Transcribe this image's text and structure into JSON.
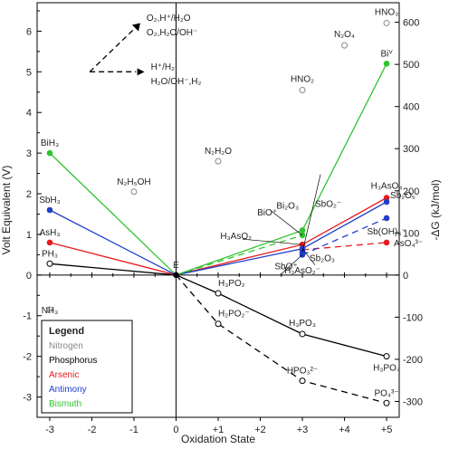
{
  "chart_data": {
    "type": "line",
    "xlabel": "Oxidation State",
    "ylabel": "Volt Equivalent (V)",
    "ylabel_right": "-ΔG (kJ/mol)",
    "xlim": [
      -3.3,
      5.3
    ],
    "ylim": [
      -3.5,
      6.7
    ],
    "x_ticks": [
      {
        "value": -3,
        "label": "-3"
      },
      {
        "value": -2,
        "label": "-2"
      },
      {
        "value": -1,
        "label": "-1"
      },
      {
        "value": 0,
        "label": "0"
      },
      {
        "value": 1,
        "label": "+1"
      },
      {
        "value": 2,
        "label": "+2"
      },
      {
        "value": 3,
        "label": "+3"
      },
      {
        "value": 4,
        "label": "+4"
      },
      {
        "value": 5,
        "label": "+5"
      }
    ],
    "y_ticks": [
      {
        "value": -3,
        "label": "-3"
      },
      {
        "value": -2,
        "label": "-2"
      },
      {
        "value": -1,
        "label": "-1"
      },
      {
        "value": 0,
        "label": "0"
      },
      {
        "value": 1,
        "label": "1"
      },
      {
        "value": 2,
        "label": "2"
      },
      {
        "value": 3,
        "label": "3"
      },
      {
        "value": 4,
        "label": "4"
      },
      {
        "value": 5,
        "label": "5"
      },
      {
        "value": 6,
        "label": "6"
      }
    ],
    "y2_ticks": [
      {
        "value": -300,
        "label": "-300"
      },
      {
        "value": -200,
        "label": "-200"
      },
      {
        "value": -100,
        "label": "-100"
      },
      {
        "value": 0,
        "label": "0"
      },
      {
        "value": 100,
        "label": "100"
      },
      {
        "value": 200,
        "label": "200"
      },
      {
        "value": 300,
        "label": "300"
      },
      {
        "value": 400,
        "label": "400"
      },
      {
        "value": 500,
        "label": "500"
      },
      {
        "value": 600,
        "label": "600"
      }
    ],
    "colors": {
      "Nitrogen": "#888888",
      "Phosphorus": "#000000",
      "Arsenic": "#e8191b",
      "Antimony": "#1f3fc9",
      "Bismuth": "#2ec52e"
    },
    "legend": {
      "title": "Legend",
      "entries": [
        "Nitrogen",
        "Phosphorus",
        "Arsenic",
        "Antimony",
        "Bismuth"
      ]
    },
    "annotation": {
      "line1": [
        "O₂,H⁺/H₂O",
        "O₂,H₂O/OH⁻"
      ],
      "line2": [
        "H⁺/H₂",
        "H₂O/OH⁻,H₂"
      ]
    },
    "lines": [
      {
        "color": "Phosphorus",
        "style": "solid",
        "points": [
          [
            -3,
            0.28
          ],
          [
            0,
            0.0
          ]
        ]
      },
      {
        "color": "Phosphorus",
        "style": "solid",
        "points": [
          [
            0,
            0.0
          ],
          [
            1,
            -0.45
          ],
          [
            3,
            -1.45
          ],
          [
            5,
            -2.0
          ]
        ]
      },
      {
        "color": "Phosphorus",
        "style": "dashed",
        "points": [
          [
            0,
            0.0
          ],
          [
            1,
            -1.2
          ],
          [
            3,
            -2.6
          ],
          [
            5,
            -3.15
          ]
        ]
      },
      {
        "color": "Arsenic",
        "style": "solid",
        "points": [
          [
            -3,
            0.8
          ],
          [
            0,
            0.0
          ],
          [
            3,
            0.75
          ],
          [
            5,
            1.9
          ]
        ]
      },
      {
        "color": "Arsenic",
        "style": "dashed",
        "points": [
          [
            3,
            0.62
          ],
          [
            5,
            0.8
          ]
        ]
      },
      {
        "color": "Antimony",
        "style": "solid",
        "points": [
          [
            -3,
            1.6
          ],
          [
            0,
            0.0
          ],
          [
            3,
            0.65
          ],
          [
            5,
            1.8
          ]
        ]
      },
      {
        "color": "Antimony",
        "style": "dashed",
        "points": [
          [
            3,
            0.5
          ],
          [
            5,
            1.4
          ]
        ]
      },
      {
        "color": "Bismuth",
        "style": "solid",
        "points": [
          [
            -3,
            3.0
          ],
          [
            0,
            0.0
          ],
          [
            3,
            1.1
          ],
          [
            5,
            5.2
          ]
        ]
      },
      {
        "color": "Bismuth",
        "style": "dashed",
        "points": [
          [
            0,
            0.0
          ],
          [
            3,
            0.98
          ]
        ]
      }
    ],
    "points": [
      {
        "color": "Nitrogen",
        "x": -3,
        "y": -0.85,
        "open": true,
        "label": "NH₃"
      },
      {
        "color": "Nitrogen",
        "x": -1,
        "y": 2.05,
        "open": true,
        "label": "N₂H₅OH"
      },
      {
        "color": "Nitrogen",
        "x": 1,
        "y": 2.8,
        "open": true,
        "label": "N₂H₂O"
      },
      {
        "color": "Nitrogen",
        "x": 3,
        "y": 4.55,
        "open": true,
        "label": "HNO₂"
      },
      {
        "color": "Nitrogen",
        "x": 4,
        "y": 5.65,
        "open": true,
        "label": "N₂O₄"
      },
      {
        "color": "Nitrogen",
        "x": 5,
        "y": 6.2,
        "open": true,
        "label": "HNO₃"
      },
      {
        "color": "Phosphorus",
        "x": -3,
        "y": 0.28,
        "open": true,
        "label": "PH₃"
      },
      {
        "color": "Phosphorus",
        "x": 0,
        "y": 0.0,
        "open": false,
        "label": "E"
      },
      {
        "color": "Phosphorus",
        "x": 1,
        "y": -0.45,
        "open": true,
        "label": "H₃PO₂"
      },
      {
        "color": "Phosphorus",
        "x": 1,
        "y": -1.2,
        "open": true,
        "label": "H₂PO₂⁻"
      },
      {
        "color": "Phosphorus",
        "x": 3,
        "y": -1.45,
        "open": true,
        "label": "H₃PO₃"
      },
      {
        "color": "Phosphorus",
        "x": 3,
        "y": -2.6,
        "open": true,
        "label": "HPO₃²⁻"
      },
      {
        "color": "Phosphorus",
        "x": 5,
        "y": -2.0,
        "open": true,
        "label": "H₃PO₄"
      },
      {
        "color": "Phosphorus",
        "x": 5,
        "y": -3.15,
        "open": true,
        "label": "PO₄³⁻"
      },
      {
        "color": "Arsenic",
        "x": -3,
        "y": 0.8,
        "open": false,
        "label": "AsH₃"
      },
      {
        "color": "Arsenic",
        "x": 3,
        "y": 0.75,
        "open": false,
        "label": "H₃AsO₂"
      },
      {
        "color": "Arsenic",
        "x": 3,
        "y": 0.62,
        "open": false,
        "label": "H₃AsO₂⁻"
      },
      {
        "color": "Arsenic",
        "x": 5,
        "y": 1.9,
        "open": false,
        "label": "H₃AsO₄"
      },
      {
        "color": "Arsenic",
        "x": 5,
        "y": 0.8,
        "open": false,
        "label": "AsO₄³⁻"
      },
      {
        "color": "Antimony",
        "x": -3,
        "y": 1.6,
        "open": false,
        "label": "SbH₃"
      },
      {
        "color": "Antimony",
        "x": 3,
        "y": 0.65,
        "open": false,
        "label": "Sb₂O₃"
      },
      {
        "color": "Antimony",
        "x": 3,
        "y": 0.5,
        "open": false,
        "label": "SbO⁺"
      },
      {
        "color": "Antimony",
        "x": 3,
        "y": 0.56,
        "open": false,
        "label": "SbO₂⁻"
      },
      {
        "color": "Antimony",
        "x": 5,
        "y": 1.8,
        "open": false,
        "label": "Sb₂O₅"
      },
      {
        "color": "Antimony",
        "x": 5,
        "y": 1.4,
        "open": false,
        "label": "Sb(OH)₆⁻"
      },
      {
        "color": "Bismuth",
        "x": -3,
        "y": 3.0,
        "open": false,
        "label": "BiH₃"
      },
      {
        "color": "Bismuth",
        "x": 3,
        "y": 1.1,
        "open": false,
        "label": "Bi₂O₃"
      },
      {
        "color": "Bismuth",
        "x": 3,
        "y": 0.98,
        "open": false,
        "label": "BiO⁺"
      },
      {
        "color": "Bismuth",
        "x": 5,
        "y": 5.2,
        "open": false,
        "label": "Biⱽ"
      }
    ]
  }
}
